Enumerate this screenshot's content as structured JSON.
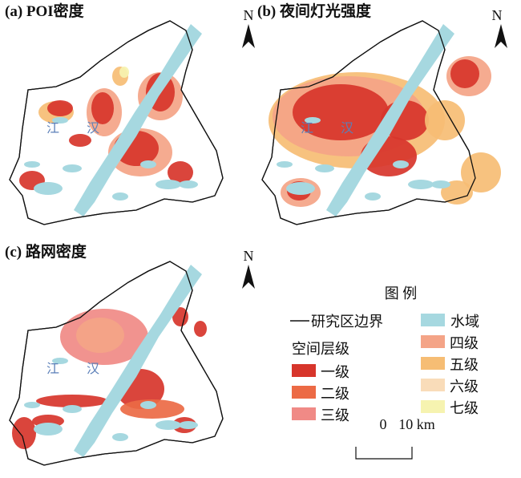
{
  "panels": [
    {
      "title": "(a) POI密度",
      "north": "N"
    },
    {
      "title": "(b) 夜间灯光强度",
      "north": "N"
    },
    {
      "title": "(c) 路网密度",
      "north": "N"
    }
  ],
  "river_labels": [
    "江",
    "汉"
  ],
  "legend": {
    "title": "图 例",
    "boundary": "研究区边界",
    "water": {
      "label": "水域",
      "color": "#a6d8e0"
    },
    "level_heading": "空间层级",
    "levels": [
      {
        "label": "一级",
        "color": "#d7352b"
      },
      {
        "label": "二级",
        "color": "#ec6a45"
      },
      {
        "label": "三级",
        "color": "#f08a86"
      },
      {
        "label": "四级",
        "color": "#f4a487"
      },
      {
        "label": "五级",
        "color": "#f6bd74"
      },
      {
        "label": "六级",
        "color": "#f9dcb9"
      },
      {
        "label": "七级",
        "color": "#f6f3b0"
      }
    ]
  },
  "scale": {
    "start": "0",
    "end": "10 km"
  }
}
